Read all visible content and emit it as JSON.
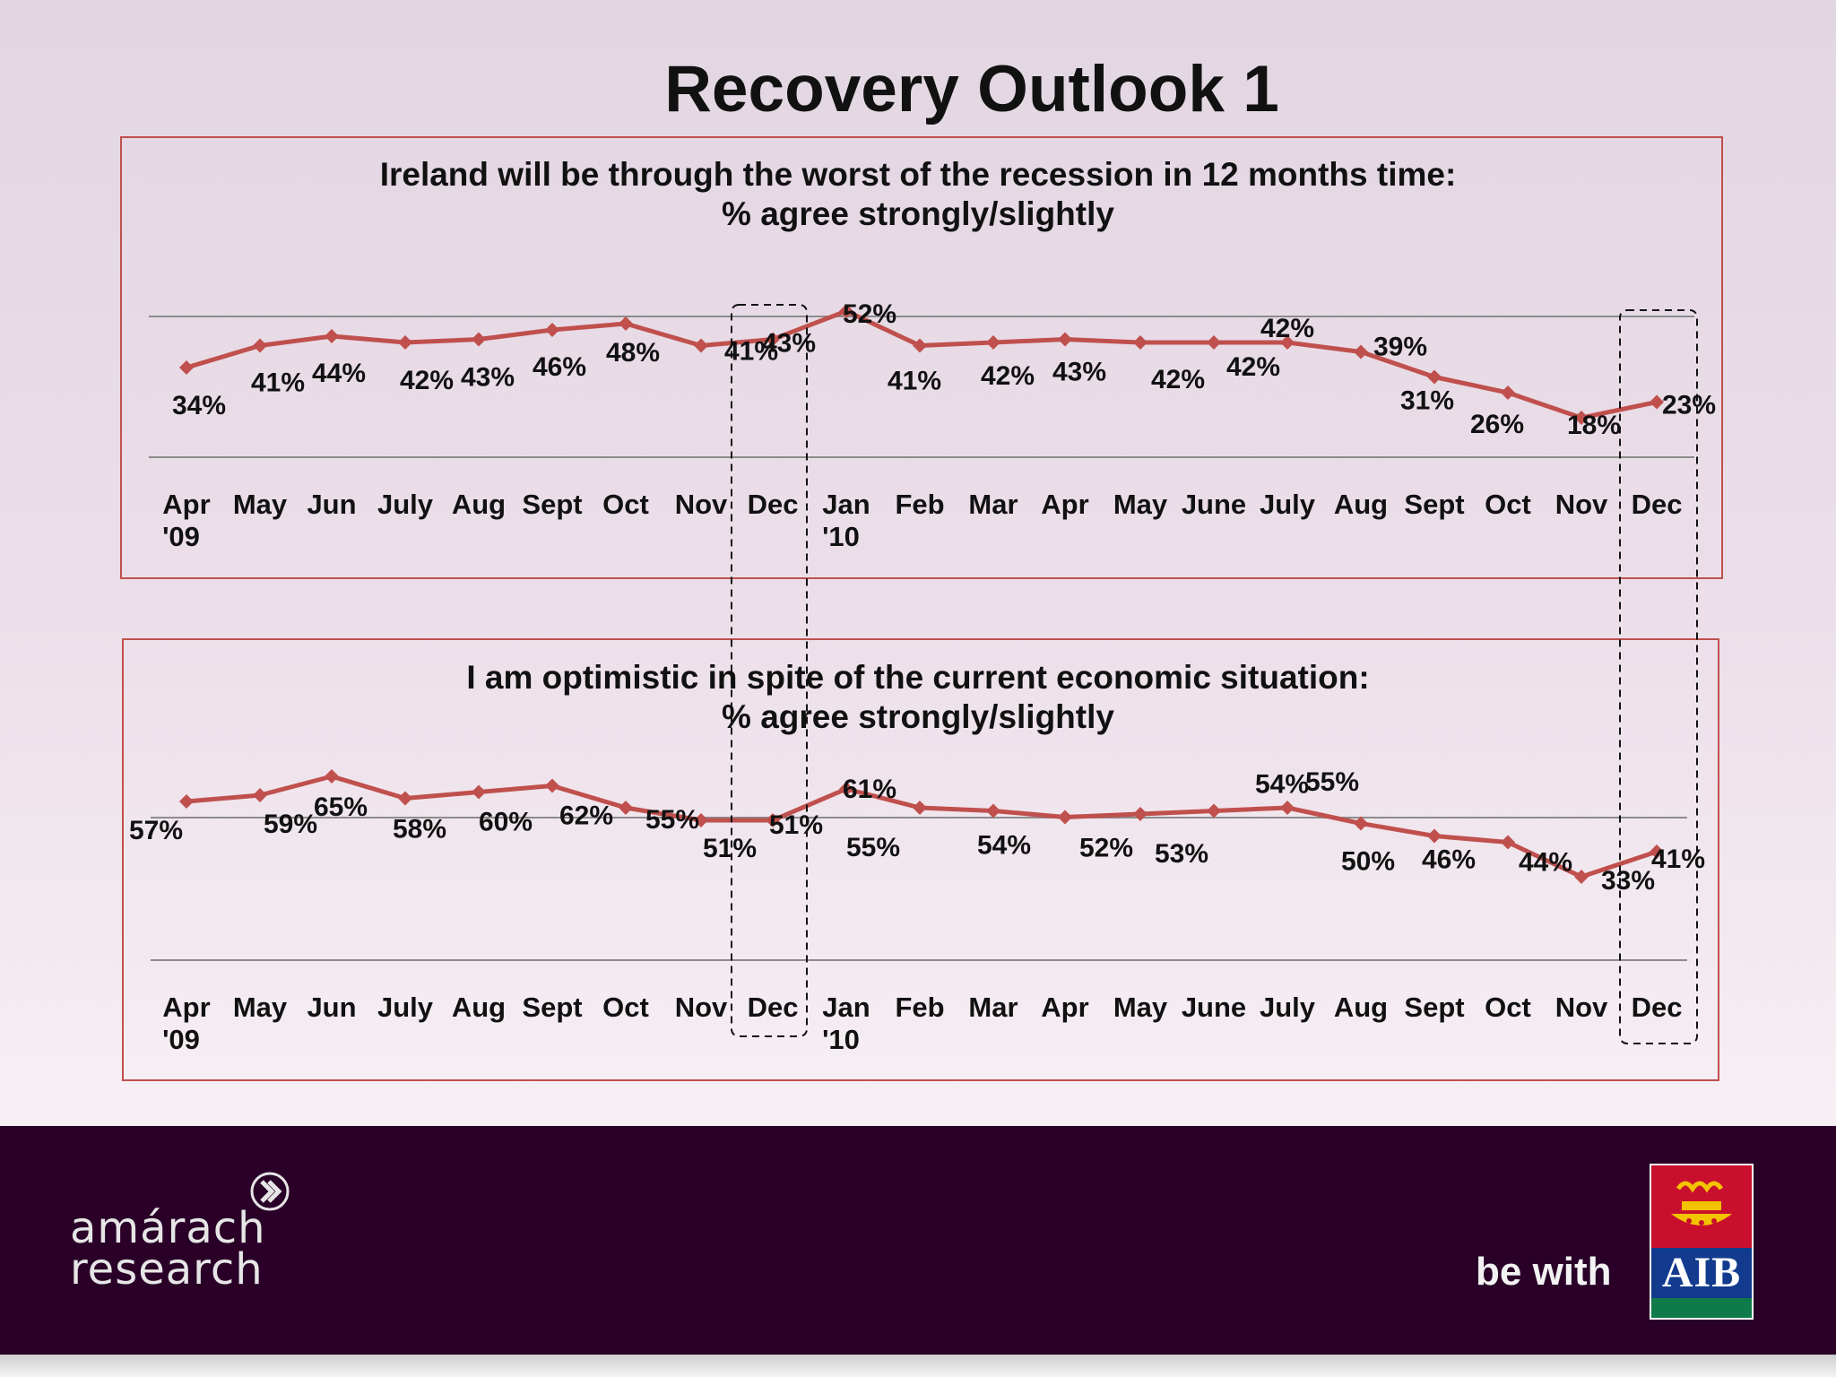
{
  "page": {
    "title": "Recovery Outlook 1"
  },
  "chart_data": [
    {
      "type": "line",
      "title": "Ireland will be through the worst of the recession in 12 months time:",
      "subtitle": "% agree strongly/slightly",
      "categories": [
        "Apr '09",
        "May",
        "Jun",
        "July",
        "Aug",
        "Sept",
        "Oct",
        "Nov",
        "Dec",
        "Jan '10",
        "Feb",
        "Mar",
        "Apr",
        "May",
        "June",
        "July",
        "Aug",
        "Sept",
        "Oct",
        "Nov",
        "Dec"
      ],
      "series": [
        {
          "values": [
            34,
            41,
            44,
            42,
            43,
            46,
            48,
            41,
            43,
            52,
            41,
            42,
            43,
            42,
            42,
            42,
            39,
            31,
            26,
            18,
            23
          ]
        }
      ],
      "data_labels": [
        "34%",
        "41%",
        "44%",
        "42%",
        "43%",
        "46%",
        "48%",
        "41%",
        "43%",
        "52%",
        "41%",
        "42%",
        "43%",
        "42%",
        "42%",
        "42%",
        "39%",
        "31%",
        "26%",
        "18%",
        "23%"
      ],
      "highlighted_categories": [
        "Dec",
        "Dec"
      ],
      "color": "#c0504d"
    },
    {
      "type": "line",
      "title": "I am optimistic in spite of the current economic situation:",
      "subtitle": "% agree strongly/slightly",
      "categories": [
        "Apr '09",
        "May",
        "Jun",
        "July",
        "Aug",
        "Sept",
        "Oct",
        "Nov",
        "Dec",
        "Jan '10",
        "Feb",
        "Mar",
        "Apr",
        "May",
        "June",
        "July",
        "Aug",
        "Sept",
        "Oct",
        "Nov",
        "Dec"
      ],
      "series": [
        {
          "values": [
            57,
            59,
            65,
            58,
            60,
            62,
            55,
            51,
            51,
            61,
            55,
            54,
            52,
            53,
            54,
            55,
            50,
            46,
            44,
            33,
            41
          ]
        }
      ],
      "data_labels": [
        "57%",
        "59%",
        "65%",
        "58%",
        "60%",
        "62%",
        "55%",
        "51%",
        "51%",
        "61%",
        "55%",
        "54%",
        "52%",
        "53%",
        "54%",
        "55%",
        "50%",
        "46%",
        "44%",
        "33%",
        "41%"
      ],
      "highlighted_categories": [
        "Dec",
        "Dec"
      ],
      "color": "#c0504d"
    }
  ],
  "footer": {
    "brand_left_line1": "amárach",
    "brand_left_line2": "research",
    "tagline": "be with",
    "brand_right": "AIB"
  }
}
